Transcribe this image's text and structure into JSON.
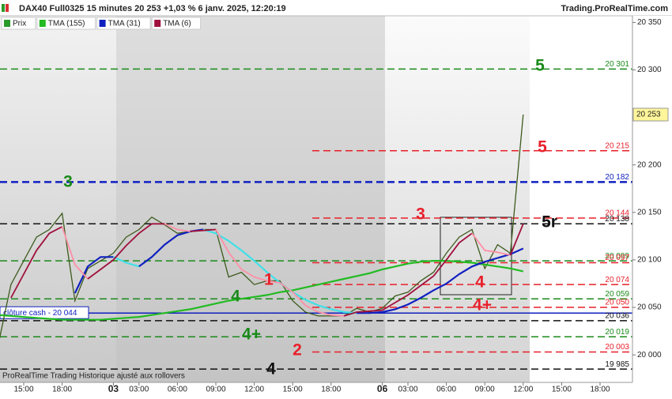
{
  "header": {
    "title": "DAX40 Full0325 15 minutes 20 253 +1,03 % 6 janv. 2025, 12:20:19",
    "site": "Trading.ProRealTime.com"
  },
  "footer": "ProRealTime Trading Historique ajusté aux rollovers",
  "chart_data": {
    "type": "line",
    "categories": [
      null,
      null,
      "15:00",
      null,
      null,
      "18:00",
      null,
      null,
      null,
      "03",
      null,
      "03:00",
      null,
      null,
      "06:00",
      null,
      null,
      "09:00",
      null,
      null,
      "12:00",
      null,
      null,
      "15:00",
      null,
      null,
      "18:00",
      null,
      null,
      null,
      "06",
      null,
      "03:00",
      null,
      null,
      "06:00",
      null,
      null,
      "09:00",
      null,
      null,
      "12:00",
      null,
      null,
      "15:00",
      null,
      null,
      "18:00",
      null,
      null
    ],
    "day_labels": [
      "03",
      "06"
    ],
    "series": [
      {
        "name": "Prix",
        "color": "#3d5a1c",
        "values": [
          20010,
          20074,
          20099,
          20124,
          20132,
          20149,
          20057,
          20091,
          20099,
          20107,
          20124,
          20132,
          20145,
          20137,
          20128,
          20130,
          20132,
          20132,
          20082,
          20087,
          20074,
          20078,
          20078,
          20057,
          20045,
          20041,
          20041,
          20041,
          20049,
          20045,
          20049,
          20062,
          20066,
          20078,
          20087,
          20107,
          20124,
          20132,
          20091,
          20116,
          20107,
          20253,
          null,
          null,
          null,
          null,
          null,
          null,
          null,
          null
        ]
      },
      {
        "name": "TMA (155)",
        "color": "#22bb22",
        "values": [
          20042,
          20041,
          20040,
          20039,
          20038,
          20037,
          20037,
          20037,
          20037,
          20038,
          20039,
          20040,
          20042,
          20044,
          20046,
          20048,
          20051,
          20054,
          20057,
          20059,
          20061,
          20063,
          20066,
          20068,
          20071,
          20074,
          20077,
          20080,
          20083,
          20086,
          20090,
          20093,
          20096,
          20098,
          20099,
          20099,
          20098,
          20097,
          20095,
          20093,
          20091,
          20088,
          null,
          null,
          null,
          null,
          null,
          null,
          null,
          null
        ]
      },
      {
        "name": "TMA (31)",
        "color": "#1020c0",
        "down_color": "#40e0e8",
        "values": [
          null,
          null,
          null,
          null,
          null,
          null,
          20065,
          20093,
          20103,
          20103,
          20097,
          20093,
          20103,
          20116,
          20126,
          20130,
          20132,
          20128,
          20120,
          20110,
          20099,
          20087,
          20076,
          20066,
          20058,
          20052,
          20048,
          20045,
          20044,
          20044,
          20045,
          20048,
          20053,
          20060,
          20068,
          20075,
          20085,
          20093,
          20098,
          20102,
          20106,
          20112,
          null,
          null,
          null,
          null,
          null,
          null,
          null,
          null
        ]
      },
      {
        "name": "TMA (6)",
        "color": "#a0103c",
        "down_color": "#ff8fa6",
        "values": [
          null,
          20060,
          20085,
          20110,
          20128,
          20135,
          20095,
          20080,
          20090,
          20100,
          20115,
          20128,
          20138,
          20138,
          20132,
          20130,
          20131,
          20132,
          20108,
          20090,
          20082,
          20078,
          20076,
          20066,
          20052,
          20045,
          20042,
          20041,
          20045,
          20046,
          20047,
          20055,
          20063,
          20073,
          20083,
          20100,
          20118,
          20128,
          20110,
          20108,
          20105,
          20138,
          null,
          null,
          null,
          null,
          null,
          null,
          null,
          null
        ]
      }
    ],
    "ylim": [
      19971,
      20357
    ],
    "yticks": [
      {
        "value": 20000,
        "label": "20 000"
      },
      {
        "value": 20050,
        "label": "20 050"
      },
      {
        "value": 20100,
        "label": "20 100"
      },
      {
        "value": 20150,
        "label": "20 150"
      },
      {
        "value": 20200,
        "label": "20 200"
      },
      {
        "value": 20250,
        "label": "20 250"
      },
      {
        "value": 20300,
        "label": "20 300"
      },
      {
        "value": 20350,
        "label": "20 350"
      }
    ],
    "last_price": {
      "value": 20253,
      "label": "20 253"
    },
    "levels": [
      {
        "value": 20301,
        "label": "20 301",
        "color": "#1a8a1a",
        "style": "dashed"
      },
      {
        "value": 20215,
        "label": "20 215",
        "color": "#e8202a",
        "style": "dashed"
      },
      {
        "value": 20182,
        "label": "20 182",
        "color": "#1020c0",
        "style": "dashed"
      },
      {
        "value": 20144,
        "label": "20 144",
        "color": "#e8202a",
        "style": "dashed"
      },
      {
        "value": 20138,
        "label": "20 138",
        "color": "#111111",
        "style": "dashed"
      },
      {
        "value": 20099,
        "label": "20 099",
        "color": "#1a8a1a",
        "style": "dashed"
      },
      {
        "value": 20097,
        "label": "20 097",
        "color": "#e8202a",
        "style": "dashed"
      },
      {
        "value": 20074,
        "label": "20 074",
        "color": "#e8202a",
        "style": "dashed"
      },
      {
        "value": 20059,
        "label": "20 059",
        "color": "#1a8a1a",
        "style": "dashed"
      },
      {
        "value": 20050,
        "label": "20 050",
        "color": "#e8202a",
        "style": "dashed"
      },
      {
        "value": 20044,
        "label": "clôture cash - 20 044",
        "color": "#1020c0",
        "style": "solid"
      },
      {
        "value": 20036,
        "label": "20 036",
        "color": "#111111",
        "style": "dashed"
      },
      {
        "value": 20019,
        "label": "20 019",
        "color": "#1a8a1a",
        "style": "dashed"
      },
      {
        "value": 20003,
        "label": "20 003",
        "color": "#e8202a",
        "style": "dashed"
      },
      {
        "value": 19985,
        "label": "19 985",
        "color": "#111111",
        "style": "dashed"
      }
    ],
    "annotations": [
      {
        "text": "5",
        "color": "#1a8a1a"
      },
      {
        "text": "5",
        "color": "#e8202a"
      },
      {
        "text": "3",
        "color": "#1a8a1a"
      },
      {
        "text": "3",
        "color": "#e8202a"
      },
      {
        "text": "5r",
        "color": "#111111"
      },
      {
        "text": "1",
        "color": "#e8202a"
      },
      {
        "text": "4",
        "color": "#1a8a1a"
      },
      {
        "text": "4",
        "color": "#e8202a"
      },
      {
        "text": "4+",
        "color": "#e8202a"
      },
      {
        "text": "4+",
        "color": "#1a8a1a"
      },
      {
        "text": "2",
        "color": "#e8202a"
      },
      {
        "text": "4",
        "color": "#111111"
      }
    ]
  }
}
